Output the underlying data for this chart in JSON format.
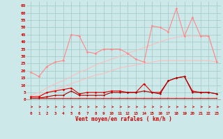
{
  "x": [
    0,
    1,
    2,
    3,
    4,
    5,
    6,
    7,
    8,
    9,
    10,
    11,
    12,
    13,
    14,
    15,
    16,
    17,
    18,
    19,
    20,
    21,
    22,
    23
  ],
  "gust_line": [
    19,
    16,
    23,
    26,
    27,
    45,
    44,
    33,
    32,
    35,
    35,
    35,
    32,
    28,
    26,
    51,
    50,
    47,
    63,
    44,
    57,
    44,
    44,
    26
  ],
  "mean_line": [
    2,
    2,
    5,
    6,
    7,
    8,
    4,
    5,
    5,
    5,
    6,
    6,
    5,
    5,
    11,
    5,
    5,
    13,
    15,
    16,
    6,
    5,
    5,
    4
  ],
  "trend1": [
    3,
    5,
    8,
    11,
    13,
    16,
    19,
    21,
    24,
    26,
    28,
    30,
    32,
    34,
    36,
    38,
    40,
    42,
    43,
    44,
    44,
    44,
    44,
    26
  ],
  "trend2": [
    2,
    3,
    5,
    7,
    9,
    11,
    13,
    15,
    17,
    18,
    20,
    22,
    23,
    24,
    25,
    26,
    27,
    27,
    27,
    27,
    27,
    27,
    27,
    26
  ],
  "dark_line": [
    1,
    1,
    2,
    3,
    3,
    6,
    3,
    3,
    3,
    3,
    5,
    5,
    5,
    5,
    6,
    5,
    4,
    13,
    15,
    16,
    5,
    5,
    5,
    4
  ],
  "flat_line": [
    1,
    1,
    1,
    1,
    1,
    1,
    1,
    1,
    1,
    1,
    1,
    1,
    1,
    1,
    1,
    1,
    1,
    1,
    1,
    1,
    1,
    1,
    1,
    1
  ],
  "bg_color": "#cce8e8",
  "grid_color": "#a0c8c8",
  "gust_color": "#ff8888",
  "mean_color": "#dd0000",
  "trend_color": "#ffbbbb",
  "dark_color": "#aa0000",
  "flat_color": "#cc0000",
  "arrow_color": "#cc2222",
  "text_color": "#cc0000",
  "xlabel": "Vent moyen/en rafales ( km/h )",
  "yticks": [
    0,
    5,
    10,
    15,
    20,
    25,
    30,
    35,
    40,
    45,
    50,
    55,
    60,
    65
  ],
  "ylim": [
    -8,
    68
  ],
  "xlim": [
    -0.5,
    23.5
  ]
}
